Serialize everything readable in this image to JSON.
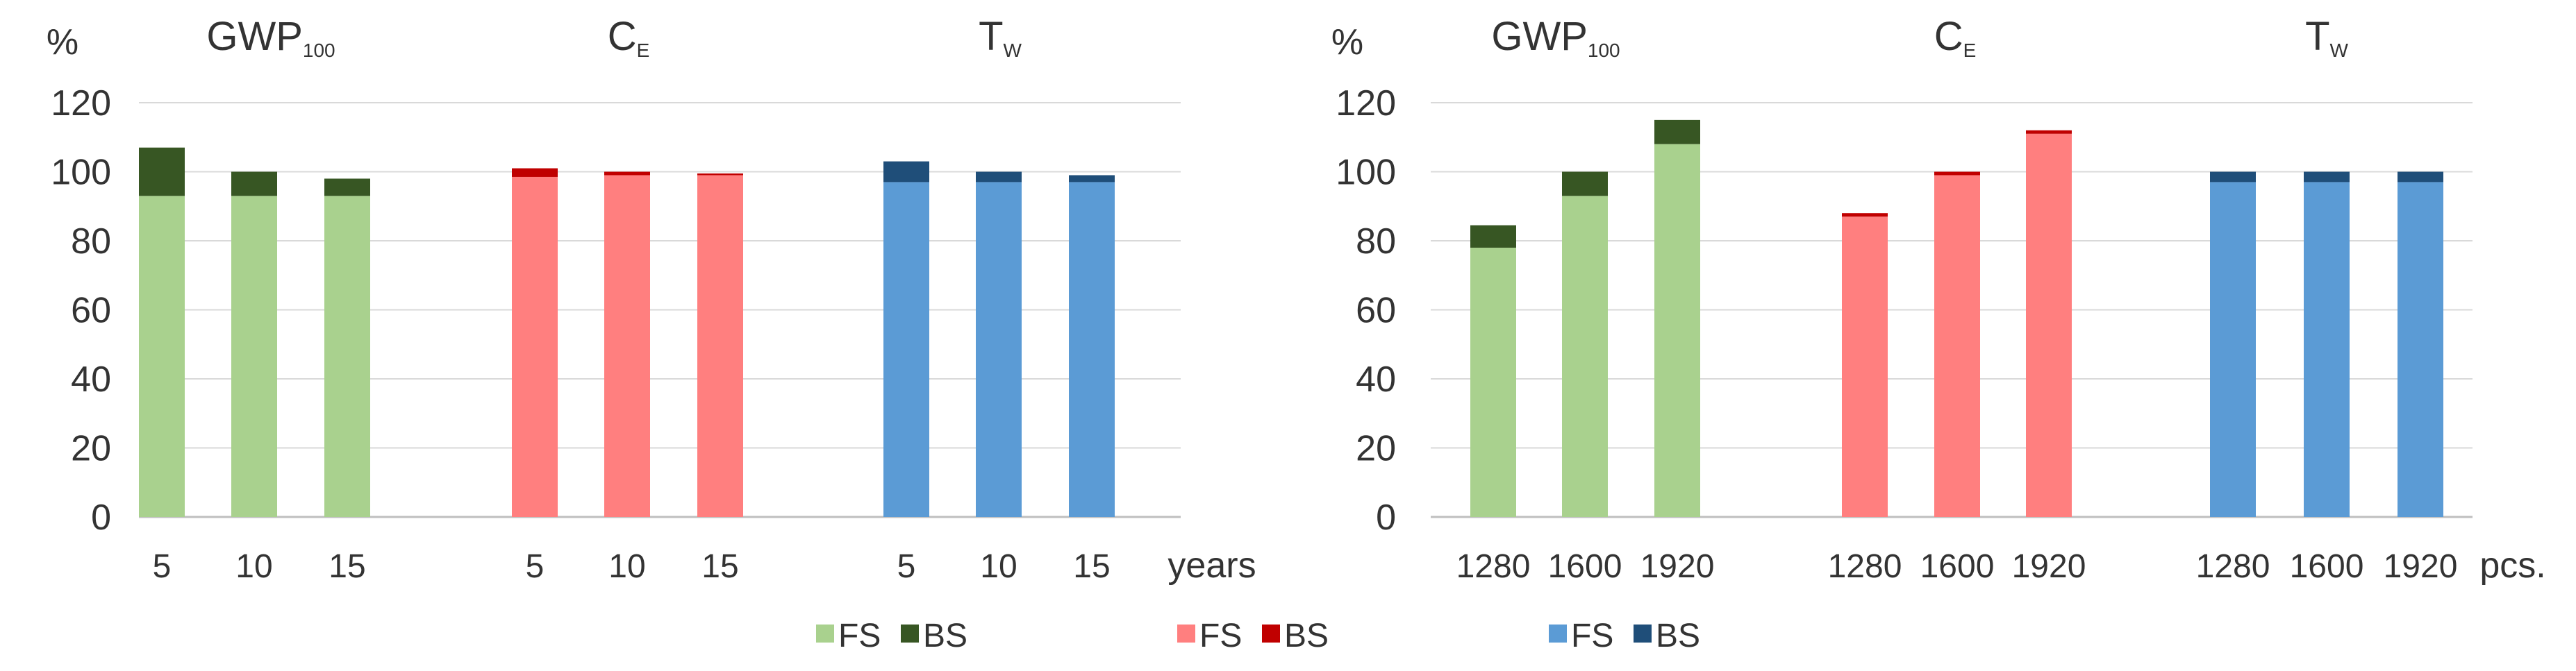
{
  "legend": [
    {
      "label_fs": "FS",
      "label_bs": "BS",
      "fs_color": "#a9d18e",
      "bs_color": "#375623"
    },
    {
      "label_fs": "FS",
      "label_bs": "BS",
      "fs_color": "#ff7f7f",
      "bs_color": "#c00000"
    },
    {
      "label_fs": "FS",
      "label_bs": "BS",
      "fs_color": "#5b9bd5",
      "bs_color": "#1f4e79"
    }
  ],
  "chart_data": [
    {
      "type": "bar",
      "stacked": true,
      "ylabel": "%",
      "ylim": [
        0,
        120
      ],
      "yticks": [
        "0",
        "20",
        "40",
        "60",
        "80",
        "100",
        "120"
      ],
      "xlabel": "years",
      "grid": true,
      "groups": [
        {
          "title": "GWP",
          "subscript": "100",
          "fs_color": "#a9d18e",
          "bs_color": "#375623",
          "categories": [
            "5",
            "10",
            "15"
          ],
          "fs": [
            93,
            93,
            93
          ],
          "bs": [
            14,
            7,
            5
          ]
        },
        {
          "title": "C",
          "subscript": "E",
          "fs_color": "#ff7f7f",
          "bs_color": "#c00000",
          "categories": [
            "5",
            "10",
            "15"
          ],
          "fs": [
            98.5,
            99,
            99
          ],
          "bs": [
            2.5,
            1,
            0.5
          ]
        },
        {
          "title": "T",
          "subscript": "W",
          "fs_color": "#5b9bd5",
          "bs_color": "#1f4e79",
          "categories": [
            "5",
            "10",
            "15"
          ],
          "fs": [
            97,
            97,
            97
          ],
          "bs": [
            6,
            3,
            2
          ]
        }
      ]
    },
    {
      "type": "bar",
      "stacked": true,
      "ylabel": "%",
      "ylim": [
        0,
        120
      ],
      "yticks": [
        "0",
        "20",
        "40",
        "60",
        "80",
        "100",
        "120"
      ],
      "xlabel": "pcs.",
      "grid": true,
      "groups": [
        {
          "title": "GWP",
          "subscript": "100",
          "fs_color": "#a9d18e",
          "bs_color": "#375623",
          "categories": [
            "1280",
            "1600",
            "1920"
          ],
          "fs": [
            78,
            93,
            108
          ],
          "bs": [
            6.5,
            7,
            7
          ]
        },
        {
          "title": "C",
          "subscript": "E",
          "fs_color": "#ff7f7f",
          "bs_color": "#c00000",
          "categories": [
            "1280",
            "1600",
            "1920"
          ],
          "fs": [
            87,
            99,
            111
          ],
          "bs": [
            1,
            1,
            1
          ]
        },
        {
          "title": "T",
          "subscript": "W",
          "fs_color": "#5b9bd5",
          "bs_color": "#1f4e79",
          "categories": [
            "1280",
            "1600",
            "1920"
          ],
          "fs": [
            97,
            97,
            97
          ],
          "bs": [
            3,
            3,
            3
          ]
        }
      ]
    }
  ]
}
